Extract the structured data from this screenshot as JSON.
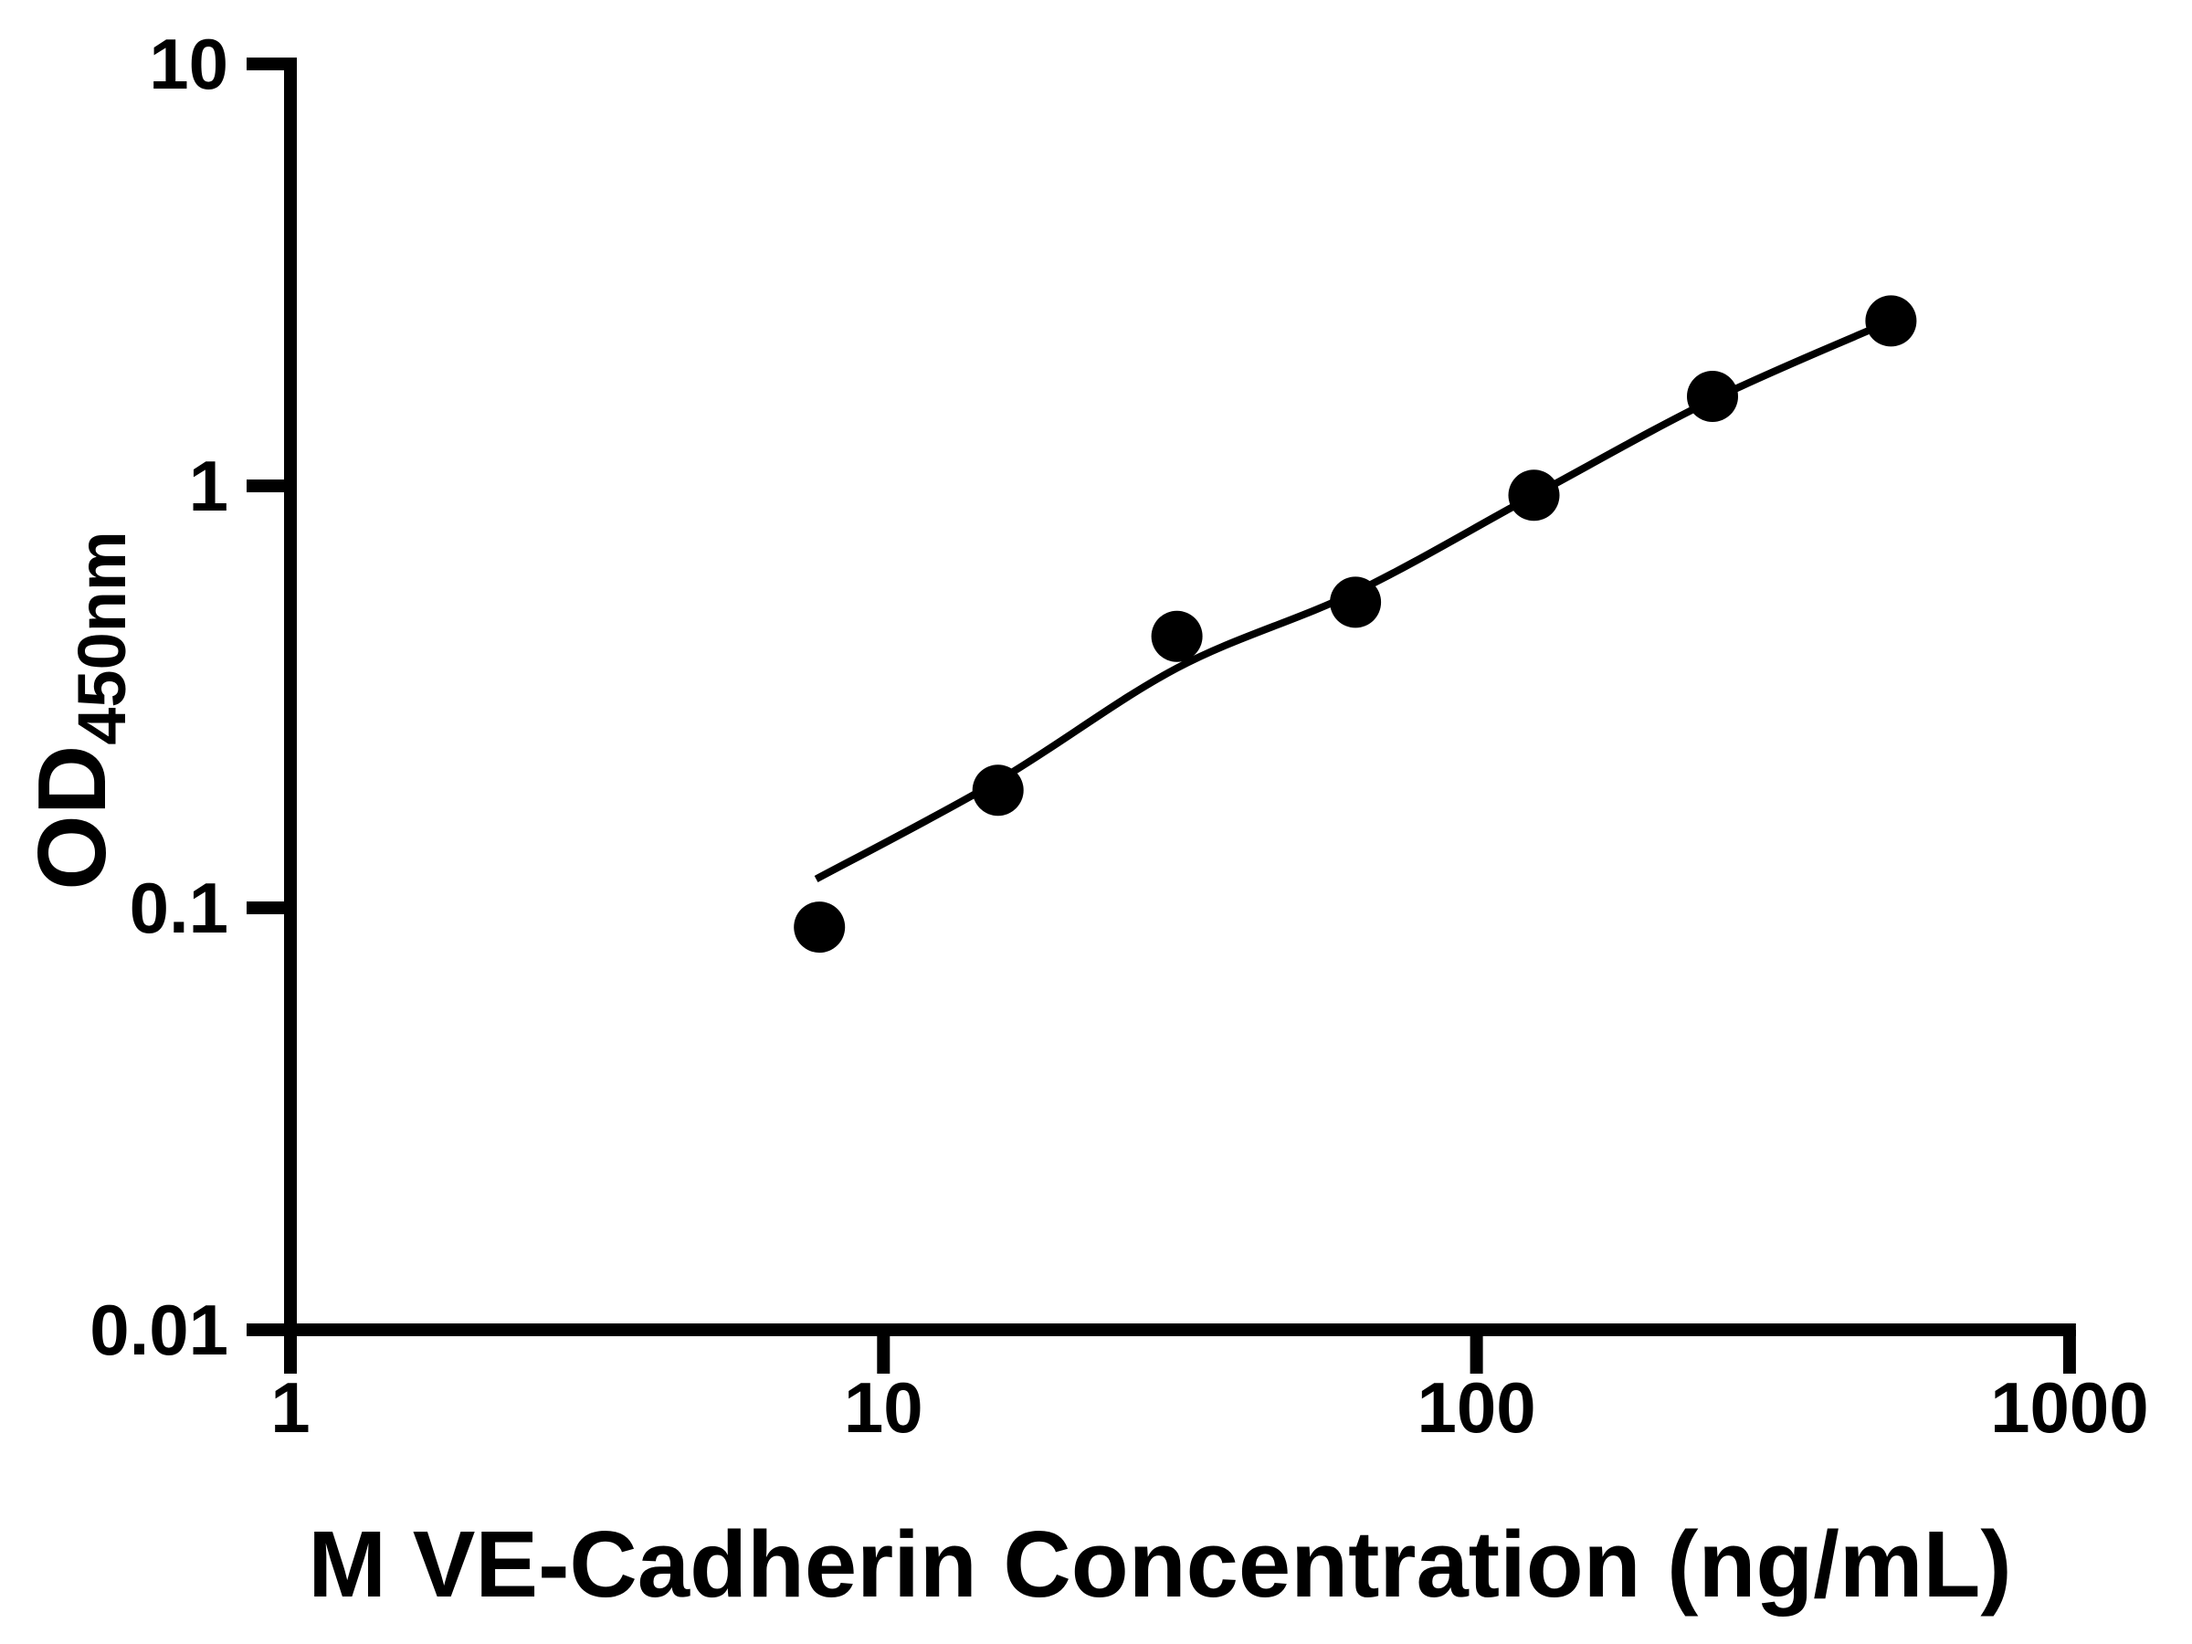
{
  "chart_data": {
    "type": "scatter",
    "xlabel": "M VE-Cadherin Concentration (ng/mL)",
    "ylabel": {
      "main": "OD",
      "sub": "450nm"
    },
    "x_scale": "log",
    "y_scale": "log",
    "xlim": [
      1,
      1000
    ],
    "ylim": [
      0.01,
      10
    ],
    "grid": "off",
    "legend": "none",
    "x_ticks": [
      {
        "v": 1,
        "label": "1"
      },
      {
        "v": 10,
        "label": "10"
      },
      {
        "v": 100,
        "label": "100"
      },
      {
        "v": 1000,
        "label": "1000"
      }
    ],
    "y_ticks": [
      {
        "v": 10,
        "label": "10"
      },
      {
        "v": 1,
        "label": "1"
      },
      {
        "v": 0.1,
        "label": "0.1"
      },
      {
        "v": 0.01,
        "label": "0.01"
      }
    ],
    "series": [
      {
        "name": "standard-points",
        "type": "scatter",
        "points": [
          {
            "x": 7.8,
            "y": 0.09
          },
          {
            "x": 15.6,
            "y": 0.19
          },
          {
            "x": 31.25,
            "y": 0.44
          },
          {
            "x": 62.5,
            "y": 0.53
          },
          {
            "x": 125,
            "y": 0.95
          },
          {
            "x": 250,
            "y": 1.63
          },
          {
            "x": 500,
            "y": 2.46
          }
        ]
      },
      {
        "name": "fit-line",
        "type": "line",
        "points": [
          {
            "x": 7.7,
            "y": 0.117
          },
          {
            "x": 15.6,
            "y": 0.2
          },
          {
            "x": 31.25,
            "y": 0.37
          },
          {
            "x": 62.5,
            "y": 0.56
          },
          {
            "x": 125,
            "y": 0.95
          },
          {
            "x": 250,
            "y": 1.6
          },
          {
            "x": 500,
            "y": 2.46
          }
        ]
      }
    ],
    "colors": {
      "marker": "#000000",
      "line": "#000000",
      "axis": "#000000",
      "background": "#ffffff"
    }
  }
}
